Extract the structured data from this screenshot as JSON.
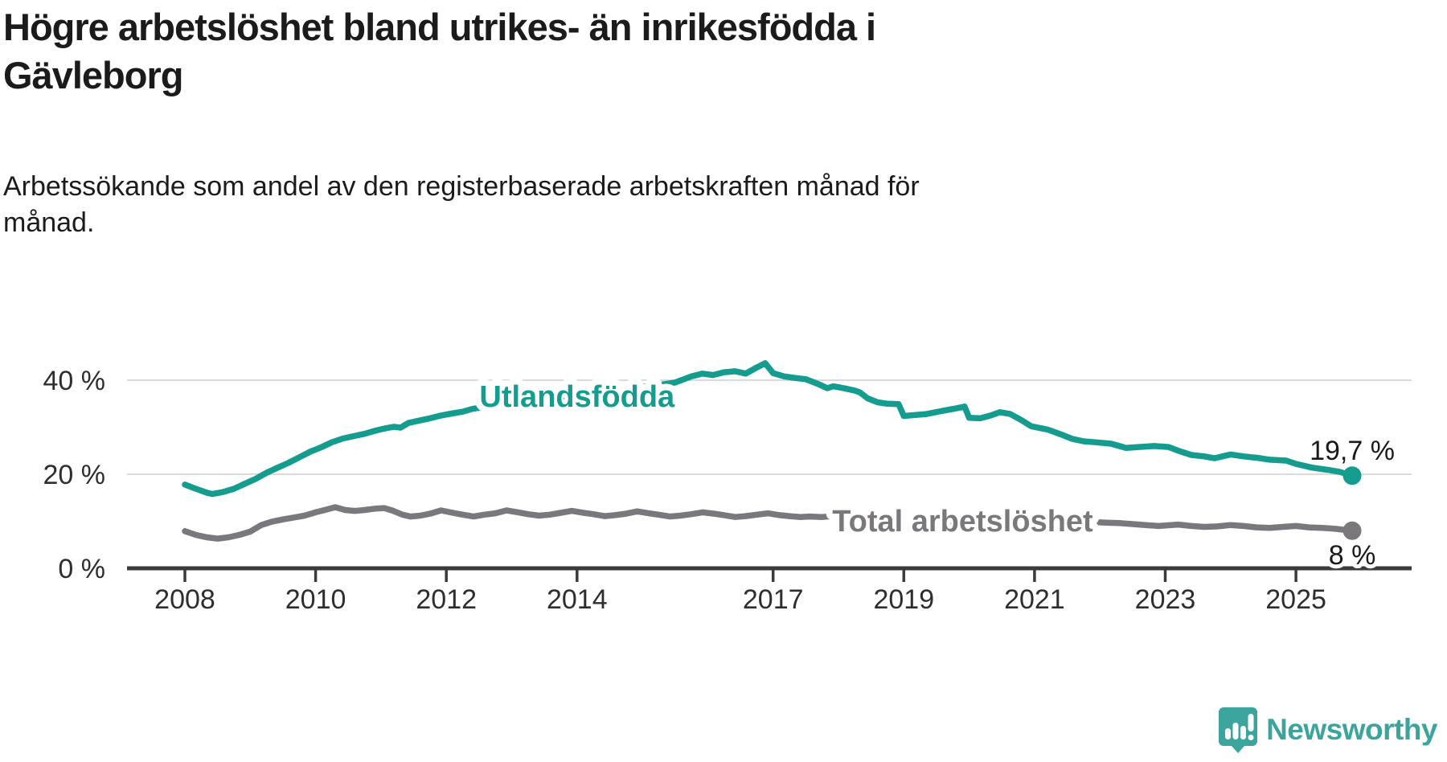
{
  "title": {
    "lines": [
      "Högre arbetslöshet bland utrikes- än inrikesfödda i",
      "Gävleborg"
    ]
  },
  "subtitle": {
    "lines": [
      "Arbetssökande som andel av den registerbaserade arbetskraften månad för",
      "månad."
    ]
  },
  "branding": {
    "name": "Newsworthy",
    "icon": "bar-chart-speech-bubble",
    "color": "#3ba49d"
  },
  "chart_data": {
    "type": "line",
    "title": "Högre arbetslöshet bland utrikes- än inrikesfödda i Gävleborg",
    "subtitle": "Arbetssökande som andel av den registerbaserade arbetskraften månad för månad.",
    "grid": "horizontal",
    "legend_position": "inline-on-line",
    "x_axis": {
      "range": [
        2007.1,
        2026.8
      ],
      "ticks": [
        {
          "v": 2008,
          "label": "2008"
        },
        {
          "v": 2010,
          "label": "2010"
        },
        {
          "v": 2012,
          "label": "2012"
        },
        {
          "v": 2014,
          "label": "2014"
        },
        {
          "v": 2017,
          "label": "2017"
        },
        {
          "v": 2019,
          "label": "2019"
        },
        {
          "v": 2021,
          "label": "2021"
        },
        {
          "v": 2023,
          "label": "2023"
        },
        {
          "v": 2025,
          "label": "2025"
        }
      ]
    },
    "y_axis": {
      "range": [
        0,
        52
      ],
      "unit": "%",
      "ticks": [
        {
          "v": 0,
          "label": "0 %"
        },
        {
          "v": 20,
          "label": "20 %"
        },
        {
          "v": 40,
          "label": "40 %"
        }
      ],
      "gridlines": [
        20,
        40
      ]
    },
    "series": [
      {
        "id": "utlandsfodda",
        "name": "Utlandsfödda",
        "color": "#149d8e",
        "end_value": 19.7,
        "end_value_label": "19,7 %",
        "end_label_position": "above",
        "inline_label": {
          "x": 2014.0,
          "y": 36.6
        },
        "points": [
          [
            2008.0,
            17.8
          ],
          [
            2008.17,
            16.9
          ],
          [
            2008.33,
            16.1
          ],
          [
            2008.42,
            15.8
          ],
          [
            2008.58,
            16.2
          ],
          [
            2008.75,
            16.9
          ],
          [
            2008.92,
            18.0
          ],
          [
            2009.08,
            19.0
          ],
          [
            2009.25,
            20.3
          ],
          [
            2009.42,
            21.4
          ],
          [
            2009.58,
            22.4
          ],
          [
            2009.75,
            23.6
          ],
          [
            2009.92,
            24.8
          ],
          [
            2010.08,
            25.7
          ],
          [
            2010.25,
            26.8
          ],
          [
            2010.42,
            27.6
          ],
          [
            2010.58,
            28.1
          ],
          [
            2010.75,
            28.6
          ],
          [
            2010.92,
            29.3
          ],
          [
            2011.08,
            29.8
          ],
          [
            2011.2,
            30.1
          ],
          [
            2011.3,
            29.9
          ],
          [
            2011.42,
            30.9
          ],
          [
            2011.58,
            31.4
          ],
          [
            2011.75,
            31.9
          ],
          [
            2011.92,
            32.5
          ],
          [
            2012.08,
            32.9
          ],
          [
            2012.25,
            33.3
          ],
          [
            2012.4,
            33.9
          ],
          [
            2012.58,
            34.3
          ],
          [
            2012.75,
            34.6
          ],
          [
            2013.0,
            35.0
          ],
          [
            2013.25,
            35.4
          ],
          [
            2013.5,
            35.8
          ],
          [
            2013.75,
            36.2
          ],
          [
            2014.0,
            36.6
          ],
          [
            2014.25,
            37.1
          ],
          [
            2014.5,
            37.6
          ],
          [
            2014.75,
            38.1
          ],
          [
            2015.0,
            38.6
          ],
          [
            2015.25,
            39.0
          ],
          [
            2015.5,
            39.5
          ],
          [
            2015.75,
            40.8
          ],
          [
            2015.92,
            41.4
          ],
          [
            2016.08,
            41.1
          ],
          [
            2016.25,
            41.7
          ],
          [
            2016.42,
            41.9
          ],
          [
            2016.58,
            41.4
          ],
          [
            2016.75,
            42.7
          ],
          [
            2016.88,
            43.6
          ],
          [
            2017.0,
            41.5
          ],
          [
            2017.17,
            40.8
          ],
          [
            2017.33,
            40.5
          ],
          [
            2017.5,
            40.2
          ],
          [
            2017.67,
            39.3
          ],
          [
            2017.83,
            38.3
          ],
          [
            2017.92,
            38.7
          ],
          [
            2018.08,
            38.3
          ],
          [
            2018.25,
            37.8
          ],
          [
            2018.33,
            37.4
          ],
          [
            2018.45,
            36.1
          ],
          [
            2018.6,
            35.3
          ],
          [
            2018.75,
            35.0
          ],
          [
            2018.92,
            34.9
          ],
          [
            2019.0,
            32.4
          ],
          [
            2019.17,
            32.6
          ],
          [
            2019.35,
            32.8
          ],
          [
            2019.6,
            33.5
          ],
          [
            2019.8,
            34.0
          ],
          [
            2019.93,
            34.4
          ],
          [
            2020.0,
            32.0
          ],
          [
            2020.17,
            31.9
          ],
          [
            2020.33,
            32.5
          ],
          [
            2020.47,
            33.2
          ],
          [
            2020.63,
            32.8
          ],
          [
            2020.8,
            31.5
          ],
          [
            2020.95,
            30.2
          ],
          [
            2021.2,
            29.5
          ],
          [
            2021.4,
            28.5
          ],
          [
            2021.58,
            27.5
          ],
          [
            2021.75,
            27.0
          ],
          [
            2021.93,
            26.8
          ],
          [
            2022.17,
            26.5
          ],
          [
            2022.4,
            25.6
          ],
          [
            2022.6,
            25.8
          ],
          [
            2022.83,
            26.0
          ],
          [
            2023.05,
            25.8
          ],
          [
            2023.2,
            25.0
          ],
          [
            2023.4,
            24.1
          ],
          [
            2023.6,
            23.8
          ],
          [
            2023.75,
            23.4
          ],
          [
            2024.0,
            24.2
          ],
          [
            2024.2,
            23.8
          ],
          [
            2024.4,
            23.5
          ],
          [
            2024.6,
            23.1
          ],
          [
            2024.85,
            22.9
          ],
          [
            2025.0,
            22.2
          ],
          [
            2025.25,
            21.4
          ],
          [
            2025.5,
            20.9
          ],
          [
            2025.67,
            20.5
          ],
          [
            2025.86,
            19.7
          ]
        ]
      },
      {
        "id": "total-arbetsloshet",
        "name": "Total arbetslöshet",
        "color": "#7a787d",
        "end_value": 8.0,
        "end_value_label": "8 %",
        "end_label_position": "below",
        "inline_label": {
          "x": 2019.9,
          "y": 10.1
        },
        "points": [
          [
            2008.0,
            7.9
          ],
          [
            2008.17,
            7.1
          ],
          [
            2008.33,
            6.6
          ],
          [
            2008.5,
            6.3
          ],
          [
            2008.67,
            6.6
          ],
          [
            2008.83,
            7.1
          ],
          [
            2009.0,
            7.8
          ],
          [
            2009.17,
            9.2
          ],
          [
            2009.33,
            9.9
          ],
          [
            2009.5,
            10.4
          ],
          [
            2009.67,
            10.8
          ],
          [
            2009.83,
            11.2
          ],
          [
            2010.0,
            11.9
          ],
          [
            2010.17,
            12.5
          ],
          [
            2010.3,
            13.0
          ],
          [
            2010.45,
            12.4
          ],
          [
            2010.6,
            12.2
          ],
          [
            2010.75,
            12.4
          ],
          [
            2010.92,
            12.7
          ],
          [
            2011.05,
            12.8
          ],
          [
            2011.17,
            12.3
          ],
          [
            2011.33,
            11.4
          ],
          [
            2011.45,
            11.0
          ],
          [
            2011.6,
            11.2
          ],
          [
            2011.75,
            11.6
          ],
          [
            2011.92,
            12.3
          ],
          [
            2012.1,
            11.8
          ],
          [
            2012.25,
            11.4
          ],
          [
            2012.42,
            11.0
          ],
          [
            2012.58,
            11.4
          ],
          [
            2012.75,
            11.7
          ],
          [
            2012.92,
            12.3
          ],
          [
            2013.1,
            11.9
          ],
          [
            2013.25,
            11.5
          ],
          [
            2013.42,
            11.2
          ],
          [
            2013.58,
            11.4
          ],
          [
            2013.75,
            11.8
          ],
          [
            2013.92,
            12.2
          ],
          [
            2014.1,
            11.8
          ],
          [
            2014.25,
            11.5
          ],
          [
            2014.42,
            11.1
          ],
          [
            2014.58,
            11.3
          ],
          [
            2014.75,
            11.6
          ],
          [
            2014.92,
            12.1
          ],
          [
            2015.1,
            11.7
          ],
          [
            2015.25,
            11.4
          ],
          [
            2015.42,
            11.0
          ],
          [
            2015.58,
            11.2
          ],
          [
            2015.75,
            11.5
          ],
          [
            2015.92,
            11.9
          ],
          [
            2016.1,
            11.6
          ],
          [
            2016.25,
            11.3
          ],
          [
            2016.42,
            10.9
          ],
          [
            2016.58,
            11.1
          ],
          [
            2016.75,
            11.4
          ],
          [
            2016.92,
            11.7
          ],
          [
            2017.1,
            11.3
          ],
          [
            2017.25,
            11.1
          ],
          [
            2017.42,
            10.9
          ],
          [
            2017.56,
            11.0
          ],
          [
            2017.75,
            10.9
          ],
          [
            2018.0,
            11.2
          ],
          [
            2018.3,
            10.8
          ],
          [
            2018.6,
            10.4
          ],
          [
            2019.0,
            10.3
          ],
          [
            2019.4,
            9.9
          ],
          [
            2019.9,
            10.1
          ],
          [
            2020.3,
            10.6
          ],
          [
            2020.8,
            10.8
          ],
          [
            2021.3,
            10.3
          ],
          [
            2021.8,
            9.9
          ],
          [
            2022.1,
            9.7
          ],
          [
            2022.3,
            9.6
          ],
          [
            2022.5,
            9.4
          ],
          [
            2022.7,
            9.2
          ],
          [
            2022.9,
            9.0
          ],
          [
            2023.0,
            9.1
          ],
          [
            2023.2,
            9.3
          ],
          [
            2023.4,
            9.0
          ],
          [
            2023.6,
            8.8
          ],
          [
            2023.8,
            8.9
          ],
          [
            2024.0,
            9.2
          ],
          [
            2024.2,
            9.0
          ],
          [
            2024.4,
            8.7
          ],
          [
            2024.6,
            8.6
          ],
          [
            2024.8,
            8.8
          ],
          [
            2025.0,
            9.0
          ],
          [
            2025.2,
            8.7
          ],
          [
            2025.4,
            8.6
          ],
          [
            2025.6,
            8.4
          ],
          [
            2025.86,
            8.0
          ]
        ]
      }
    ]
  }
}
